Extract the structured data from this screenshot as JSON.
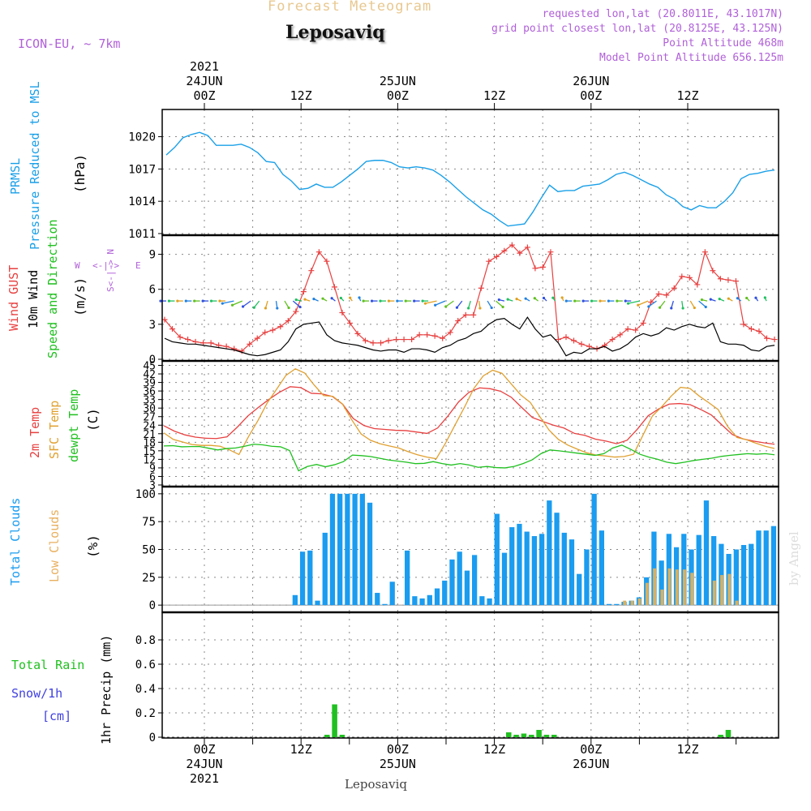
{
  "header": {
    "super_title": "Forecast Meteogram",
    "location": "Leposaviq",
    "model": "ICON-EU, ~ 7km",
    "requested": "requested lon,lat (20.8011E, 43.1017N)",
    "grid_point": "grid point closest lon,lat (20.8125E, 43.125N)",
    "point_altitude": "Point Altitude 468m",
    "model_altitude": "Model Point Altitude 656.125m",
    "footer": "Leposaviq",
    "watermark": "by Angel"
  },
  "colors": {
    "pressure": "#1aa0e8",
    "gust": "#e84040",
    "wind": "#000000",
    "temp": "#e84040",
    "sfc_temp": "#e0a030",
    "dewpt": "#20c020",
    "total_clouds": "#1a9cf0",
    "low_clouds": "#d8b060",
    "rain": "#20c020",
    "snow": "#4040e0",
    "purple": "#b060d8",
    "orange": "#e8b060"
  },
  "time_axis": {
    "top_labels": [
      {
        "t": 0,
        "lines": [
          "2021",
          "24JUN",
          "00Z"
        ]
      },
      {
        "t": 12,
        "lines": [
          "12Z"
        ]
      },
      {
        "t": 24,
        "lines": [
          "25JUN",
          "00Z"
        ]
      },
      {
        "t": 36,
        "lines": [
          "12Z"
        ]
      },
      {
        "t": 48,
        "lines": [
          "26JUN",
          "00Z"
        ]
      },
      {
        "t": 60,
        "lines": [
          "12Z"
        ]
      }
    ],
    "bottom_labels": [
      {
        "t": 0,
        "lines": [
          "00Z",
          "24JUN",
          "2021"
        ]
      },
      {
        "t": 12,
        "lines": [
          "12Z"
        ]
      },
      {
        "t": 24,
        "lines": [
          "00Z",
          "25JUN"
        ]
      },
      {
        "t": 36,
        "lines": [
          "12Z"
        ]
      },
      {
        "t": 48,
        "lines": [
          "00Z",
          "26JUN"
        ]
      },
      {
        "t": 60,
        "lines": [
          "12Z"
        ]
      }
    ]
  },
  "panel_labels": {
    "pressure": {
      "l1": "PRMSL",
      "l2": "Pressure Reduced to MSL",
      "unit": "(hPa)"
    },
    "wind": {
      "gust": "Wind GUST",
      "wind10": "10m Wind",
      "dir": "Speed and Direction",
      "unit": "(m/s)",
      "compass_ns": "S<-|-> N",
      "compass_w": "W",
      "compass_ew": "<-|->",
      "compass_e": "E"
    },
    "temp": {
      "t2m": "2m Temp",
      "sfc": "SFC Temp",
      "dew": "dewpt Temp",
      "unit": "(C)"
    },
    "clouds": {
      "total": "Total Clouds",
      "low": "Low Clouds",
      "unit": "(%)"
    },
    "precip": {
      "rain": "Total  Rain",
      "snow": "Snow/1h",
      "cm": "[cm]",
      "axis": "1hr Precip (mm)"
    }
  },
  "chart_data": [
    {
      "type": "line",
      "panel": "pressure",
      "ylim": [
        1011,
        1022
      ],
      "yticks": [
        "1011",
        "1014",
        "1017",
        "1020"
      ],
      "series": [
        {
          "name": "PRMSL",
          "values": [
            1018.3,
            1019.0,
            1019.9,
            1020.2,
            1020.4,
            1020.1,
            1019.2,
            1019.2,
            1019.2,
            1019.3,
            1019.0,
            1018.5,
            1017.7,
            1017.6,
            1016.5,
            1015.9,
            1015.1,
            1015.2,
            1015.6,
            1015.3,
            1015.3,
            1015.8,
            1016.4,
            1017.0,
            1017.7,
            1017.8,
            1017.8,
            1017.6,
            1017.2,
            1017.1,
            1017.2,
            1017.1,
            1016.9,
            1016.4,
            1015.8,
            1015.1,
            1014.4,
            1013.8,
            1013.2,
            1012.8,
            1012.2,
            1011.7,
            1011.8,
            1011.9,
            1013.0,
            1014.3,
            1015.5,
            1014.9,
            1015.0,
            1015.0,
            1015.4,
            1015.5,
            1015.6,
            1016.0,
            1016.5,
            1016.7,
            1016.4,
            1016.0,
            1015.6,
            1015.3,
            1014.6,
            1014.2,
            1013.5,
            1013.2,
            1013.6,
            1013.4,
            1013.4,
            1014.0,
            1014.8,
            1016.1,
            1016.5,
            1016.6,
            1016.8,
            1016.9
          ]
        }
      ]
    },
    {
      "type": "line",
      "panel": "wind",
      "ylim": [
        0,
        10.5
      ],
      "yticks": [
        "0",
        "3",
        "6",
        "9"
      ],
      "series": [
        {
          "name": "Wind GUST",
          "values": [
            3.4,
            2.6,
            1.9,
            1.7,
            1.5,
            1.4,
            1.4,
            1.2,
            1.1,
            0.9,
            0.7,
            1.3,
            1.8,
            2.3,
            2.5,
            2.8,
            3.3,
            4.1,
            5.8,
            7.6,
            9.2,
            8.4,
            6.2,
            4.0,
            3.1,
            2.2,
            1.6,
            1.4,
            1.4,
            1.6,
            1.7,
            1.7,
            1.7,
            2.1,
            2.1,
            2.0,
            1.8,
            2.3,
            3.3,
            3.8,
            3.8,
            6.1,
            8.4,
            8.8,
            9.3,
            9.8,
            9.1,
            9.6,
            7.8,
            7.9,
            9.2,
            1.7,
            1.9,
            1.6,
            1.3,
            1.1,
            0.9,
            1.2,
            1.7,
            2.1,
            2.6,
            2.5,
            3.1,
            4.9,
            5.6,
            5.5,
            6.1,
            7.1,
            7.0,
            6.4,
            9.2,
            7.6,
            6.9,
            6.8,
            6.7,
            3.0,
            2.6,
            2.4,
            1.8,
            1.7
          ]
        },
        {
          "name": "10m Wind",
          "values": [
            1.8,
            1.5,
            1.4,
            1.3,
            1.3,
            1.2,
            1.1,
            1.0,
            0.9,
            0.8,
            0.6,
            0.4,
            0.3,
            0.4,
            0.6,
            0.8,
            1.5,
            2.6,
            3.0,
            3.1,
            3.2,
            2.1,
            1.6,
            1.4,
            1.3,
            1.2,
            1.0,
            0.8,
            0.7,
            0.8,
            0.8,
            0.6,
            0.9,
            0.9,
            0.8,
            0.6,
            1.0,
            1.2,
            1.6,
            1.8,
            2.2,
            2.4,
            3.0,
            3.4,
            3.5,
            3.0,
            2.6,
            3.6,
            2.6,
            1.9,
            2.1,
            1.4,
            0.3,
            0.6,
            0.5,
            0.9,
            0.9,
            1.1,
            0.7,
            0.9,
            1.3,
            1.9,
            2.2,
            2.0,
            2.2,
            2.7,
            2.5,
            2.8,
            3.0,
            2.8,
            2.7,
            3.1,
            1.5,
            1.3,
            1.3,
            1.2,
            0.8,
            0.7,
            1.1,
            1.2
          ]
        }
      ]
    },
    {
      "type": "line",
      "panel": "temperature",
      "ylim": [
        3,
        46
      ],
      "yticks": [
        "3",
        "6",
        "9",
        "12",
        "15",
        "18",
        "21",
        "24",
        "27",
        "30",
        "33",
        "36",
        "39",
        "42",
        "45"
      ],
      "series": [
        {
          "name": "2m Temp",
          "values": [
            23.8,
            21.9,
            20.6,
            19.8,
            19.4,
            19.3,
            19.9,
            23.4,
            27.3,
            30.3,
            33.1,
            35.6,
            37.5,
            37.2,
            35.2,
            35.0,
            34.1,
            31.3,
            26.3,
            23.9,
            22.8,
            22.5,
            22.2,
            22.1,
            21.6,
            21.1,
            23.0,
            27.3,
            32.2,
            35.6,
            37.1,
            36.8,
            35.9,
            33.8,
            30.2,
            26.7,
            25.3,
            24.0,
            23.0,
            21.1,
            20.4,
            19.1,
            18.4,
            17.5,
            18.7,
            22.7,
            27.3,
            29.7,
            31.4,
            31.6,
            31.2,
            29.5,
            27.6,
            24.1,
            20.7,
            19.2,
            18.4,
            17.8,
            17.3
          ]
        },
        {
          "name": "SFC Temp",
          "values": [
            21.3,
            19.0,
            18.1,
            17.2,
            16.9,
            16.9,
            16.6,
            15.3,
            13.7,
            19.9,
            25.5,
            31.8,
            36.6,
            41.5,
            43.8,
            42.3,
            38.1,
            34.4,
            34.1,
            31.5,
            25.9,
            20.9,
            18.7,
            17.5,
            16.7,
            16.0,
            14.7,
            13.6,
            12.8,
            12.2,
            17.8,
            24.1,
            30.3,
            36.9,
            41.3,
            43.3,
            42.2,
            38.4,
            34.6,
            32.0,
            27.1,
            22.3,
            19.0,
            17.0,
            15.6,
            14.3,
            13.5,
            13.2,
            12.8,
            13.0,
            13.8,
            20.5,
            27.2,
            30.5,
            34.2,
            37.3,
            36.9,
            34.2,
            31.9,
            29.5,
            23.6,
            19.7,
            18.9,
            17.7,
            16.6,
            15.8
          ]
        },
        {
          "name": "dewpt Temp",
          "values": [
            16.7,
            16.8,
            16.4,
            16.5,
            16.5,
            15.9,
            15.3,
            15.8,
            16.0,
            16.6,
            17.3,
            17.1,
            16.6,
            16.4,
            15.1,
            8.0,
            9.5,
            10.2,
            9.4,
            10.1,
            11.2,
            13.5,
            13.3,
            13.0,
            12.4,
            11.8,
            11.4,
            11.0,
            10.5,
            10.6,
            11.2,
            10.5,
            10.0,
            10.5,
            10.0,
            9.2,
            9.5,
            9.1,
            9.0,
            9.5,
            10.5,
            11.8,
            14.0,
            15.3,
            15.0,
            14.6,
            14.2,
            13.8,
            13.4,
            14.0,
            16.0,
            17.0,
            15.5,
            13.8,
            12.8,
            12.0,
            11.0,
            10.5,
            11.0,
            11.6,
            12.0,
            12.4,
            13.0,
            13.4,
            13.7,
            14.0,
            13.8,
            14.0,
            13.6
          ]
        }
      ]
    },
    {
      "type": "bar",
      "panel": "clouds",
      "ylim": [
        -5,
        105
      ],
      "yticks": [
        "0",
        "25",
        "50",
        "75",
        "100"
      ],
      "series": [
        {
          "name": "Total Clouds",
          "values": [
            0,
            0,
            0,
            0,
            0,
            0,
            0,
            0,
            0,
            0,
            0,
            0,
            0,
            0,
            0,
            0,
            0,
            9,
            48,
            49,
            4,
            65,
            100,
            100,
            100,
            100,
            100,
            92,
            11,
            1,
            21,
            0,
            49,
            8,
            6,
            9,
            15,
            22,
            41,
            48,
            31,
            45,
            8,
            6,
            82,
            47,
            70,
            73,
            66,
            62,
            64,
            94,
            83,
            65,
            59,
            28,
            50,
            100,
            67,
            1,
            1,
            3,
            4,
            7,
            25,
            66,
            40,
            64,
            52,
            64,
            50,
            63,
            94,
            62,
            55,
            46,
            50,
            54,
            55,
            67,
            67,
            71
          ]
        },
        {
          "name": "Low Clouds",
          "values": [
            0,
            0,
            0,
            0,
            0,
            0,
            0,
            0,
            0,
            0,
            0,
            0,
            0,
            0,
            0,
            0,
            0,
            0,
            0,
            0,
            0,
            0,
            0,
            0,
            0,
            0,
            0,
            0,
            0,
            0,
            0,
            0,
            0,
            0,
            0,
            0,
            0,
            0,
            0,
            0,
            0,
            0,
            0,
            0,
            0,
            0,
            0,
            0,
            0,
            0,
            0,
            0,
            0,
            0,
            0,
            0,
            0,
            0,
            0,
            0,
            0,
            4,
            4,
            6,
            20,
            33,
            14,
            33,
            32,
            32,
            29,
            0,
            0,
            22,
            27,
            28,
            4,
            0,
            0,
            0,
            0,
            0
          ]
        }
      ]
    },
    {
      "type": "bar",
      "panel": "precipitation",
      "ylim": [
        0,
        0.98
      ],
      "yticks": [
        "0",
        "0.2",
        "0.4",
        "0.6",
        "0.8"
      ],
      "series": [
        {
          "name": "Total Rain",
          "values": [
            0,
            0,
            0,
            0,
            0,
            0,
            0,
            0,
            0,
            0,
            0,
            0,
            0,
            0,
            0,
            0,
            0,
            0,
            0,
            0,
            0,
            0.02,
            0.27,
            0.02,
            0,
            0,
            0,
            0,
            0,
            0,
            0,
            0,
            0,
            0,
            0,
            0,
            0,
            0,
            0,
            0,
            0,
            0,
            0,
            0,
            0,
            0.04,
            0.02,
            0.03,
            0.02,
            0.06,
            0.02,
            0.02,
            0,
            0,
            0,
            0,
            0,
            0,
            0,
            0,
            0,
            0,
            0,
            0,
            0,
            0,
            0,
            0,
            0,
            0,
            0,
            0,
            0,
            0.02,
            0.06,
            0,
            0,
            0,
            0,
            0,
            0
          ]
        }
      ]
    }
  ]
}
